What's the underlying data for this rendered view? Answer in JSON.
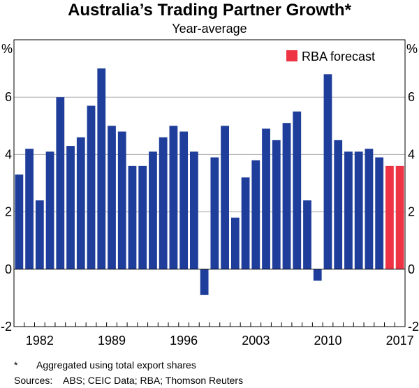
{
  "chart_data": {
    "type": "bar",
    "title": "Australia’s Trading Partner Growth*",
    "subtitle": "Year-average",
    "ylabel_left": "%",
    "ylabel_right": "%",
    "ylim": [
      -2,
      8
    ],
    "yticks": [
      -2,
      0,
      2,
      4,
      6
    ],
    "xtick_labels": [
      "1982",
      "1989",
      "1996",
      "2003",
      "2010",
      "2017"
    ],
    "legend": {
      "label": "RBA forecast",
      "color": "#ee3444",
      "position": "top-right"
    },
    "colors": {
      "actual": "#1f3e9b",
      "forecast": "#ee3444"
    },
    "categories": [
      1980,
      1981,
      1982,
      1983,
      1984,
      1985,
      1986,
      1987,
      1988,
      1989,
      1990,
      1991,
      1992,
      1993,
      1994,
      1995,
      1996,
      1997,
      1998,
      1999,
      2000,
      2001,
      2002,
      2003,
      2004,
      2005,
      2006,
      2007,
      2008,
      2009,
      2010,
      2011,
      2012,
      2013,
      2014,
      2015,
      2016,
      2017
    ],
    "values": [
      3.3,
      4.2,
      2.4,
      4.1,
      6.0,
      4.3,
      4.6,
      5.7,
      7.0,
      5.0,
      4.8,
      3.6,
      3.6,
      4.1,
      4.6,
      5.0,
      4.8,
      4.1,
      -0.9,
      3.9,
      5.0,
      1.8,
      3.2,
      3.8,
      4.9,
      4.5,
      5.1,
      5.5,
      2.4,
      -0.4,
      6.8,
      4.5,
      4.1,
      4.1,
      4.2,
      3.9,
      3.6,
      3.6
    ],
    "forecast_from": 2016
  },
  "footnote": {
    "marker": "*",
    "text": "Aggregated using total export shares",
    "sources_label": "Sources:",
    "sources": "ABS; CEIC Data; RBA; Thomson Reuters"
  }
}
